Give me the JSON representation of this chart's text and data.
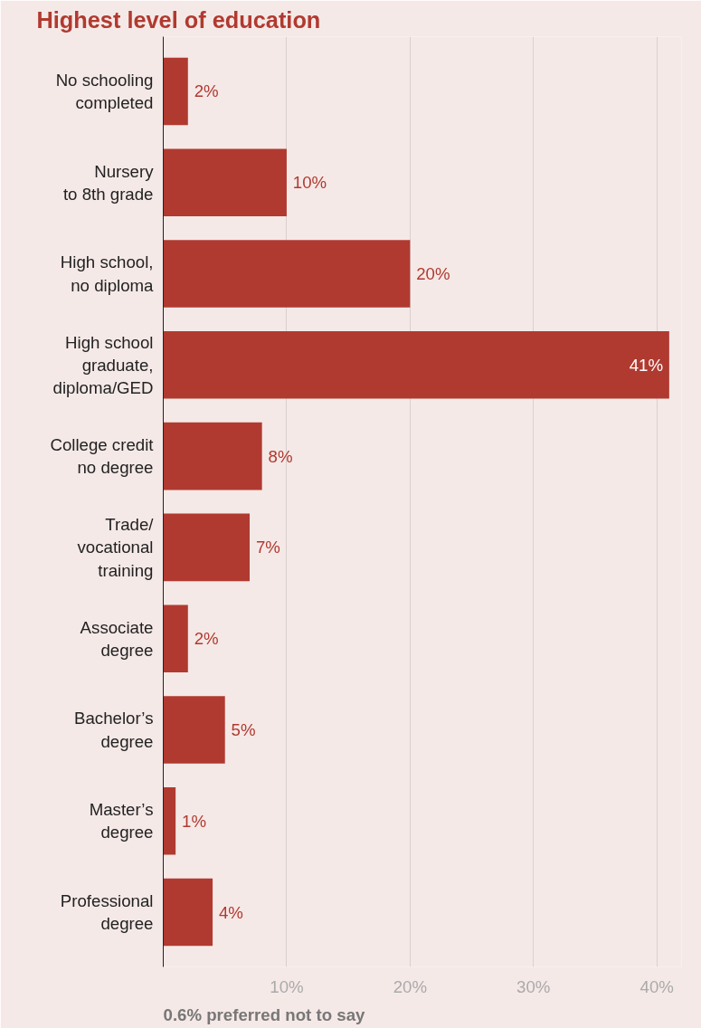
{
  "chart_data": {
    "type": "bar",
    "orientation": "horizontal",
    "title": "Highest level of education",
    "categories": [
      "No schooling\ncompleted",
      "Nursery\nto 8th grade",
      "High school,\nno diploma",
      "High school\ngraduate,\ndiploma/GED",
      "College credit\nno degree",
      "Trade/\nvocational\ntraining",
      "Associate\ndegree",
      "Bachelor’s\ndegree",
      "Master’s\ndegree",
      "Professional\ndegree"
    ],
    "values": [
      2,
      10,
      20,
      41,
      8,
      7,
      2,
      5,
      1,
      4
    ],
    "color": "#b03a30",
    "value_labels": [
      "2%",
      "10%",
      "20%",
      "41%",
      "8%",
      "7%",
      "2%",
      "5%",
      "1%",
      "4%"
    ],
    "xlim": [
      0,
      42
    ],
    "xticks": [
      {
        "value": 10,
        "label": "10%"
      },
      {
        "value": 20,
        "label": "20%"
      },
      {
        "value": 30,
        "label": "30%"
      },
      {
        "value": 40,
        "label": "40%"
      }
    ],
    "grid": "x",
    "annotations": [
      "0.6% preferred not to say"
    ]
  }
}
